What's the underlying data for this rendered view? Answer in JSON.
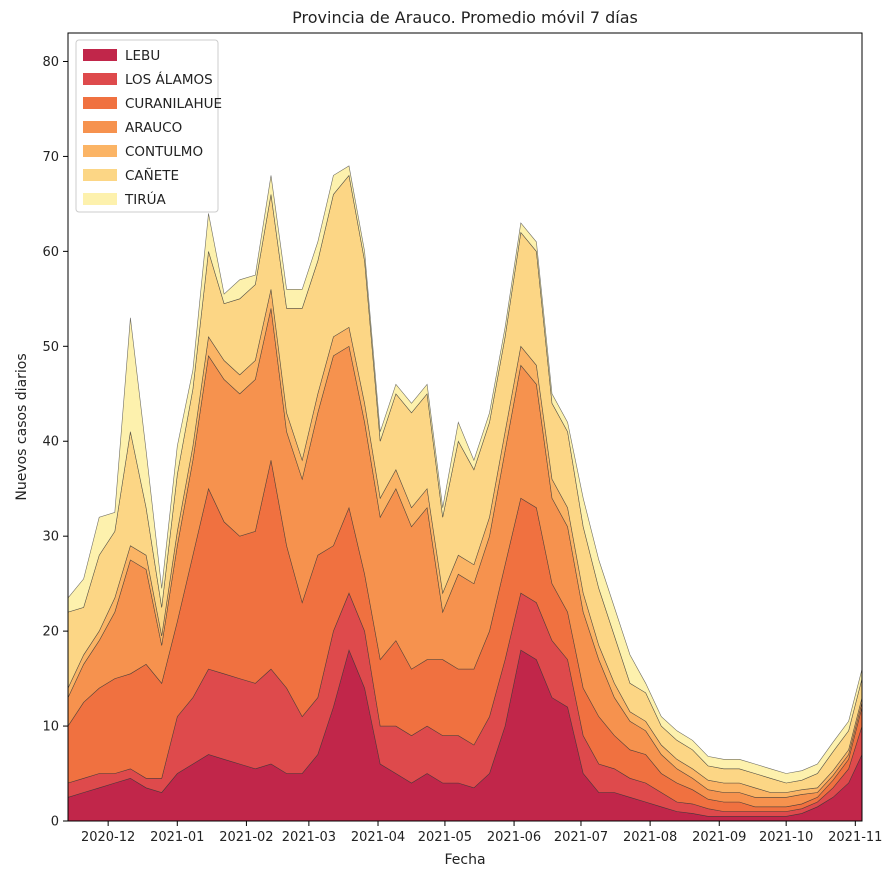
{
  "chart_data": {
    "type": "area",
    "stacked": true,
    "title": "Provincia de Arauco. Promedio móvil 7 días",
    "xlabel": "Fecha",
    "ylabel": "Nuevos casos diarios",
    "x_start": "2020-11-13",
    "x_end": "2021-11-04",
    "ylim": [
      0,
      83
    ],
    "yticks": [
      0,
      10,
      20,
      30,
      40,
      50,
      60,
      70,
      80
    ],
    "xtick_labels": [
      "2020-12",
      "2021-01",
      "2021-02",
      "2021-03",
      "2021-04",
      "2021-05",
      "2021-06",
      "2021-07",
      "2021-08",
      "2021-09",
      "2021-10",
      "2021-11"
    ],
    "xtick_dates": [
      "2020-12-01",
      "2021-01-01",
      "2021-02-01",
      "2021-03-01",
      "2021-04-01",
      "2021-05-01",
      "2021-06-01",
      "2021-07-01",
      "2021-08-01",
      "2021-09-01",
      "2021-10-01",
      "2021-11-01"
    ],
    "legend_position": "upper-left",
    "grid": false,
    "x": [
      "2020-11-13",
      "2020-11-20",
      "2020-11-27",
      "2020-12-04",
      "2020-12-11",
      "2020-12-18",
      "2020-12-25",
      "2021-01-01",
      "2021-01-08",
      "2021-01-15",
      "2021-01-22",
      "2021-01-29",
      "2021-02-05",
      "2021-02-12",
      "2021-02-19",
      "2021-02-26",
      "2021-03-05",
      "2021-03-12",
      "2021-03-19",
      "2021-03-26",
      "2021-04-02",
      "2021-04-09",
      "2021-04-16",
      "2021-04-23",
      "2021-04-30",
      "2021-05-07",
      "2021-05-14",
      "2021-05-21",
      "2021-05-28",
      "2021-06-04",
      "2021-06-11",
      "2021-06-18",
      "2021-06-25",
      "2021-07-02",
      "2021-07-09",
      "2021-07-16",
      "2021-07-23",
      "2021-07-30",
      "2021-08-06",
      "2021-08-13",
      "2021-08-20",
      "2021-08-27",
      "2021-09-03",
      "2021-09-10",
      "2021-09-17",
      "2021-09-24",
      "2021-10-01",
      "2021-10-08",
      "2021-10-15",
      "2021-10-22",
      "2021-10-29",
      "2021-11-04"
    ],
    "series": [
      {
        "name": "LEBU",
        "color": "#c1264a",
        "values": [
          2.5,
          3,
          3.5,
          4,
          4.5,
          3.5,
          3,
          5,
          6,
          7,
          6.5,
          6,
          5.5,
          6,
          5,
          5,
          7,
          12,
          18,
          14,
          6,
          5,
          4,
          5,
          4,
          4,
          3.5,
          5,
          10,
          18,
          17,
          13,
          12,
          5,
          3,
          3,
          2.5,
          2,
          1.5,
          1,
          0.8,
          0.5,
          0.5,
          0.5,
          0.5,
          0.5,
          0.5,
          0.8,
          1.5,
          2.5,
          4,
          7
        ]
      },
      {
        "name": "LOS ÁLAMOS",
        "color": "#de4a4c",
        "values": [
          1.5,
          1.5,
          1.5,
          1,
          1,
          1,
          1.5,
          6,
          7,
          9,
          9,
          9,
          9,
          10,
          9,
          6,
          6,
          8,
          6,
          6,
          4,
          5,
          5,
          5,
          5,
          5,
          4.5,
          6,
          7,
          6,
          6,
          6,
          5,
          4,
          3,
          2.5,
          2,
          2,
          1.5,
          1,
          1,
          0.8,
          0.5,
          0.5,
          0.5,
          0.5,
          0.5,
          0.5,
          0.5,
          1,
          1.5,
          3
        ]
      },
      {
        "name": "CURANILAHUE",
        "color": "#f07140",
        "values": [
          6,
          8,
          9,
          10,
          10,
          12,
          10,
          10,
          15,
          19,
          16,
          15,
          16,
          22,
          15,
          12,
          15,
          9,
          9,
          6,
          7,
          9,
          7,
          7,
          8,
          7,
          8,
          9,
          10,
          10,
          10,
          6,
          5,
          5,
          5,
          3.5,
          3,
          3,
          2,
          2,
          1.5,
          1,
          1,
          1,
          0.5,
          0.5,
          0.5,
          0.5,
          0.5,
          0.8,
          1,
          2
        ]
      },
      {
        "name": "ARAUCO",
        "color": "#f6924e",
        "values": [
          3,
          4,
          5,
          7,
          12,
          10,
          4,
          8,
          10,
          14,
          15,
          15,
          16,
          16,
          12,
          13,
          15,
          20,
          17,
          16,
          15,
          16,
          15,
          16,
          5,
          10,
          9,
          10,
          12,
          14,
          13,
          9,
          9,
          8,
          6,
          4,
          3,
          2.5,
          2,
          1.5,
          1.2,
          1,
          1,
          1,
          1,
          1,
          1,
          1,
          0.5,
          0.5,
          0.5,
          0.5
        ]
      },
      {
        "name": "CONTULMO",
        "color": "#fbb465",
        "values": [
          1,
          1,
          1,
          1.5,
          1.5,
          1.5,
          1,
          1.5,
          1.5,
          2,
          2,
          2,
          2,
          2,
          2,
          2,
          2,
          2,
          2,
          2,
          2,
          2,
          2,
          2,
          2,
          2,
          2,
          2,
          2,
          2,
          2,
          2,
          2,
          2,
          1.5,
          1.5,
          1,
          1,
          1,
          1,
          1,
          1,
          1,
          1,
          1,
          0.5,
          0.5,
          0.5,
          0.5,
          0.5,
          0.5,
          0.5
        ]
      },
      {
        "name": "CAÑETE",
        "color": "#fcd685",
        "values": [
          8,
          5,
          8,
          7,
          12,
          5,
          3,
          6,
          6,
          9,
          6,
          8,
          8,
          10,
          11,
          16,
          14,
          15,
          16,
          15,
          6,
          8,
          10,
          10,
          8,
          12,
          10,
          10,
          10,
          12,
          12,
          8,
          8,
          7,
          6,
          5,
          3,
          3,
          2,
          2,
          2,
          1.5,
          1.5,
          1.5,
          1.5,
          1.5,
          1,
          1,
          1.5,
          2,
          2,
          2
        ]
      },
      {
        "name": "TIRÚA",
        "color": "#fdf1ad",
        "values": [
          1.5,
          3,
          4,
          2,
          12,
          6,
          2,
          3,
          2,
          4,
          1,
          2,
          1,
          2,
          2,
          2,
          2,
          2,
          1,
          1,
          1,
          1,
          1,
          1,
          1,
          2,
          1,
          1,
          1,
          1,
          1,
          1,
          1,
          3,
          3,
          3,
          3,
          1,
          1,
          1,
          1,
          1,
          1,
          1,
          1,
          1,
          1,
          1,
          1,
          1,
          1,
          1
        ]
      }
    ]
  }
}
